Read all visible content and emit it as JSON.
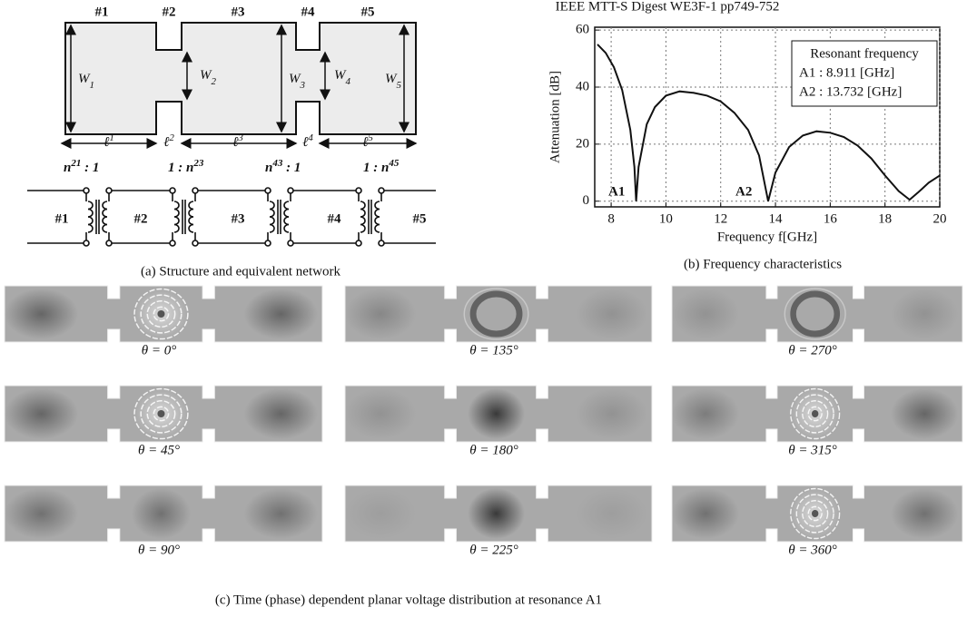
{
  "header": "IEEE MTT-S Digest WE3F-1 pp749-752",
  "panel_a": {
    "sections": [
      "#1",
      "#2",
      "#3",
      "#4",
      "#5"
    ],
    "widths": [
      [
        {
          "text": "W"
        },
        {
          "sub": "1"
        }
      ],
      [
        {
          "text": "W"
        },
        {
          "sub": "2"
        }
      ],
      [
        {
          "text": "W"
        },
        {
          "sub": "3"
        }
      ],
      [
        {
          "text": "W"
        },
        {
          "sub": "4"
        }
      ],
      [
        {
          "text": "W"
        },
        {
          "sub": "5"
        }
      ]
    ],
    "lengths": [
      [
        {
          "text": "ℓ"
        },
        {
          "sup": "1"
        }
      ],
      [
        {
          "text": "ℓ"
        },
        {
          "sup": "2"
        }
      ],
      [
        {
          "text": "ℓ"
        },
        {
          "sup": "3"
        }
      ],
      [
        {
          "text": "ℓ"
        },
        {
          "sup": "4"
        }
      ],
      [
        {
          "text": "ℓ"
        },
        {
          "sup": "5"
        }
      ]
    ],
    "ratios": [
      [
        {
          "text": "n"
        },
        {
          "sup": "21"
        },
        {
          "text": " : 1"
        }
      ],
      [
        {
          "text": "1 : n"
        },
        {
          "sup": "23"
        }
      ],
      [
        {
          "text": "n"
        },
        {
          "sup": "43"
        },
        {
          "text": " : 1"
        }
      ],
      [
        {
          "text": "1 : n"
        },
        {
          "sup": "45"
        }
      ]
    ],
    "ports": [
      "#1",
      "#2",
      "#3",
      "#4",
      "#5"
    ],
    "caption": "(a) Structure and equivalent network"
  },
  "chart_data": {
    "type": "line",
    "x_label": "Frequency f[GHz]",
    "y_label": "Attenuation  [dB]",
    "x": [
      7.5,
      7.8,
      8.1,
      8.4,
      8.7,
      8.85,
      8.911,
      9.0,
      9.3,
      9.6,
      10,
      10.5,
      11,
      11.5,
      12,
      12.5,
      13,
      13.4,
      13.732,
      14,
      14.5,
      15,
      15.5,
      16,
      16.5,
      17,
      17.5,
      18,
      18.5,
      18.9,
      19.2,
      19.6,
      20
    ],
    "values": [
      55,
      52,
      47,
      39,
      25,
      12,
      0,
      12,
      27,
      33,
      37,
      38.5,
      38,
      37,
      35,
      31,
      25,
      16,
      0,
      10,
      19,
      23,
      24.5,
      24,
      22.5,
      19.5,
      15,
      9,
      3.5,
      0.5,
      3,
      6.5,
      9
    ],
    "color": "#111111",
    "xlim": [
      7.4,
      20
    ],
    "xticks": [
      8,
      10,
      12,
      14,
      16,
      18,
      20
    ],
    "ylim": [
      -2,
      61
    ],
    "yticks": [
      0,
      20,
      40,
      60
    ],
    "grid": true,
    "annotations": [
      "A1",
      "A2"
    ],
    "legend_box": {
      "title": "Resonant frequency",
      "lines": [
        "A1 :  8.911 [GHz]",
        "A2 : 13.732 [GHz]"
      ]
    },
    "caption": "(b) Frequency characteristics"
  },
  "panel_c": {
    "frames": [
      "θ = 0°",
      "θ = 135°",
      "θ = 270°",
      "θ = 45°",
      "θ = 180°",
      "θ = 315°",
      "θ = 90°",
      "θ = 225°",
      "θ = 360°"
    ],
    "caption": "(c) Time (phase) dependent planar voltage distribution at resonance A1"
  }
}
